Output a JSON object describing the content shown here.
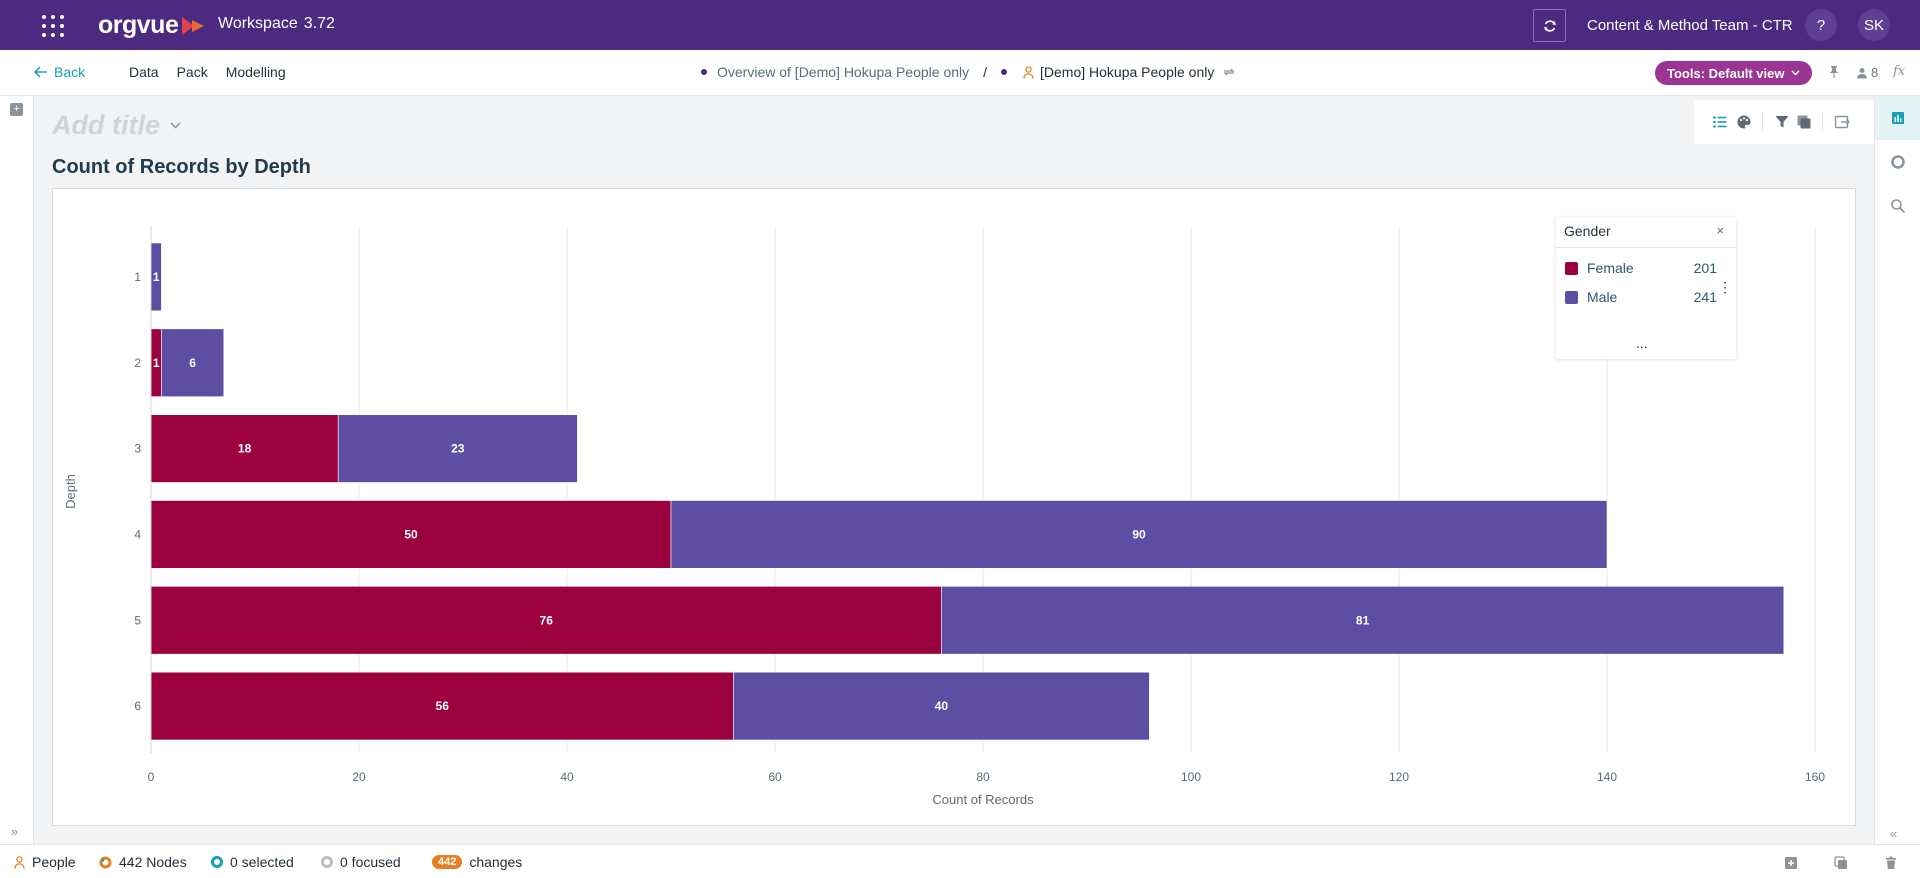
{
  "header": {
    "logo_text": "orgvue",
    "workspace_label": "Workspace",
    "version": "3.72",
    "team": "Content & Method Team - CTR",
    "help_label": "?",
    "avatar_initials": "SK"
  },
  "nav": {
    "back_label": "Back",
    "menu": [
      "Data",
      "Pack",
      "Modelling"
    ],
    "breadcrumb_view": "Overview of [Demo] Hokupa People only",
    "breadcrumb_separator": "/",
    "breadcrumb_dataset": "[Demo] Hokupa People only",
    "tools_label": "Tools: Default view",
    "users_count": "8",
    "fx_label": "fx"
  },
  "page": {
    "add_title_placeholder": "Add title",
    "chart_title": "Count of Records by Depth"
  },
  "legend": {
    "title": "Gender",
    "close_label": "×",
    "items": [
      {
        "label": "Female",
        "count": "201",
        "color": "#9b003f"
      },
      {
        "label": "Male",
        "count": "241",
        "color": "#5d4da3"
      }
    ],
    "more_label": "...",
    "menu_label": "⋮"
  },
  "chart_data": {
    "type": "bar",
    "orientation": "horizontal",
    "stacked": true,
    "title": "Count of Records by Depth",
    "xlabel": "Count of Records",
    "ylabel": "Depth",
    "categories": [
      "1",
      "2",
      "3",
      "4",
      "5",
      "6"
    ],
    "series": [
      {
        "name": "Female",
        "color": "#9b003f",
        "values": [
          0,
          1,
          18,
          50,
          76,
          56
        ]
      },
      {
        "name": "Male",
        "color": "#5d4da3",
        "values": [
          1,
          6,
          23,
          90,
          81,
          40
        ]
      }
    ],
    "xlim": [
      0,
      160
    ],
    "xticks": [
      0,
      20,
      40,
      60,
      80,
      100,
      120,
      140,
      160
    ],
    "grid": true,
    "legend": "top-right"
  },
  "status": {
    "dataset": "People",
    "nodes": "442 Nodes",
    "selected": "0 selected",
    "focused": "0 focused",
    "changes_count": "442",
    "changes_label": "changes"
  }
}
